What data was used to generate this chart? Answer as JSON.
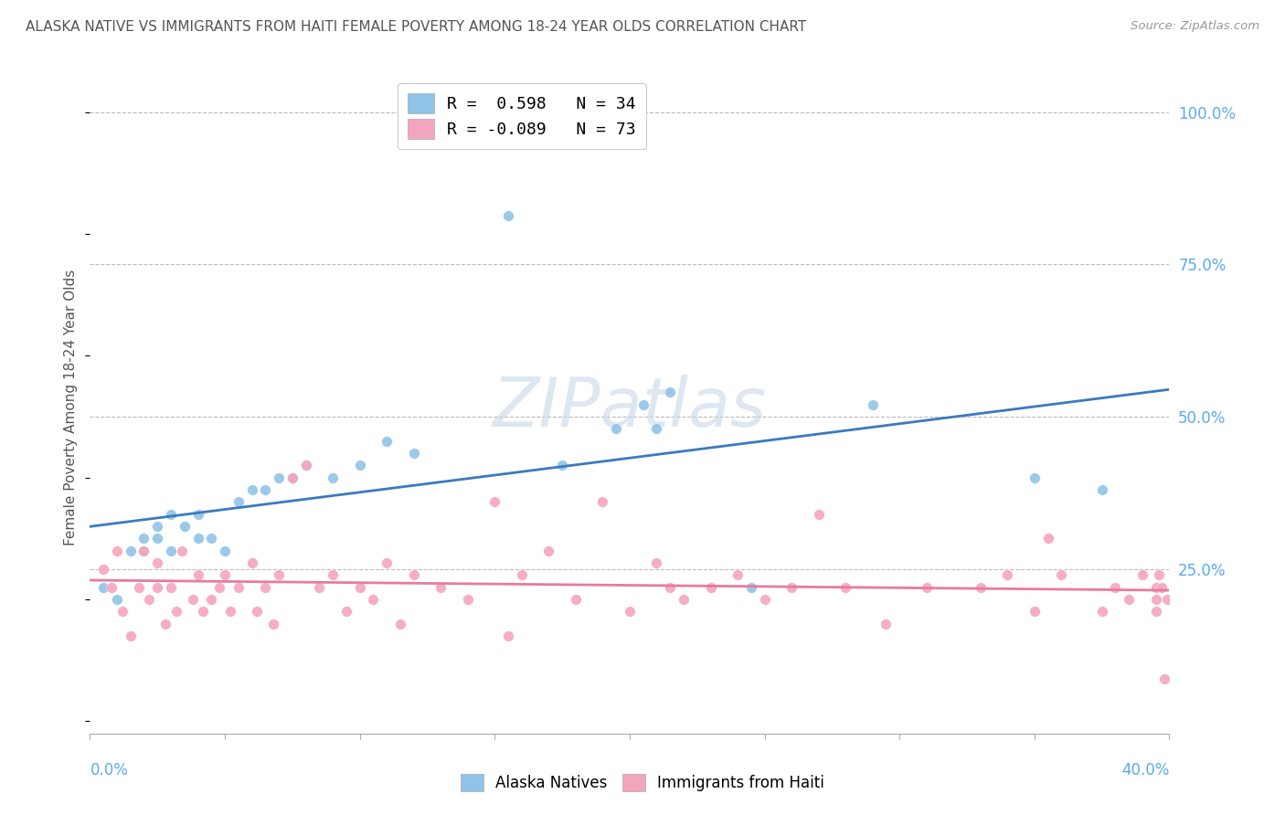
{
  "title": "ALASKA NATIVE VS IMMIGRANTS FROM HAITI FEMALE POVERTY AMONG 18-24 YEAR OLDS CORRELATION CHART",
  "source": "Source: ZipAtlas.com",
  "ylabel": "Female Poverty Among 18-24 Year Olds",
  "xmin": 0.0,
  "xmax": 0.4,
  "ymin": -0.02,
  "ymax": 1.05,
  "legend_blue_r": "0.598",
  "legend_blue_n": "34",
  "legend_pink_r": "-0.089",
  "legend_pink_n": "73",
  "blue_color": "#90c4e8",
  "pink_color": "#f4a5be",
  "blue_line_color": "#3a7abf",
  "pink_line_color": "#e87aa0",
  "watermark": "ZIPatlas",
  "grid_color": "#bbbbbb",
  "title_color": "#555555",
  "right_axis_color": "#5aaaf0",
  "bottom_label_color": "#5aaaf0",
  "blue_scatter_x": [
    0.005,
    0.01,
    0.015,
    0.02,
    0.02,
    0.025,
    0.025,
    0.03,
    0.03,
    0.035,
    0.04,
    0.04,
    0.045,
    0.05,
    0.055,
    0.06,
    0.065,
    0.07,
    0.075,
    0.08,
    0.09,
    0.1,
    0.11,
    0.12,
    0.155,
    0.175,
    0.195,
    0.205,
    0.21,
    0.215,
    0.245,
    0.29,
    0.35,
    0.375
  ],
  "blue_scatter_y": [
    0.22,
    0.2,
    0.28,
    0.28,
    0.3,
    0.3,
    0.32,
    0.28,
    0.34,
    0.32,
    0.3,
    0.34,
    0.3,
    0.28,
    0.36,
    0.38,
    0.38,
    0.4,
    0.4,
    0.42,
    0.4,
    0.42,
    0.46,
    0.44,
    0.83,
    0.42,
    0.48,
    0.52,
    0.48,
    0.54,
    0.22,
    0.52,
    0.4,
    0.38
  ],
  "pink_scatter_x": [
    0.005,
    0.008,
    0.01,
    0.012,
    0.015,
    0.018,
    0.02,
    0.022,
    0.025,
    0.025,
    0.028,
    0.03,
    0.032,
    0.034,
    0.038,
    0.04,
    0.042,
    0.045,
    0.048,
    0.05,
    0.052,
    0.055,
    0.06,
    0.062,
    0.065,
    0.068,
    0.07,
    0.075,
    0.08,
    0.085,
    0.09,
    0.095,
    0.1,
    0.105,
    0.11,
    0.115,
    0.12,
    0.13,
    0.14,
    0.15,
    0.155,
    0.16,
    0.17,
    0.18,
    0.19,
    0.2,
    0.21,
    0.215,
    0.22,
    0.23,
    0.24,
    0.25,
    0.26,
    0.27,
    0.28,
    0.295,
    0.31,
    0.33,
    0.34,
    0.35,
    0.355,
    0.36,
    0.375,
    0.38,
    0.385,
    0.39,
    0.395,
    0.395,
    0.395,
    0.396,
    0.397,
    0.398,
    0.399
  ],
  "pink_scatter_y": [
    0.25,
    0.22,
    0.28,
    0.18,
    0.14,
    0.22,
    0.28,
    0.2,
    0.26,
    0.22,
    0.16,
    0.22,
    0.18,
    0.28,
    0.2,
    0.24,
    0.18,
    0.2,
    0.22,
    0.24,
    0.18,
    0.22,
    0.26,
    0.18,
    0.22,
    0.16,
    0.24,
    0.4,
    0.42,
    0.22,
    0.24,
    0.18,
    0.22,
    0.2,
    0.26,
    0.16,
    0.24,
    0.22,
    0.2,
    0.36,
    0.14,
    0.24,
    0.28,
    0.2,
    0.36,
    0.18,
    0.26,
    0.22,
    0.2,
    0.22,
    0.24,
    0.2,
    0.22,
    0.34,
    0.22,
    0.16,
    0.22,
    0.22,
    0.24,
    0.18,
    0.3,
    0.24,
    0.18,
    0.22,
    0.2,
    0.24,
    0.22,
    0.2,
    0.18,
    0.24,
    0.22,
    0.07,
    0.2
  ]
}
